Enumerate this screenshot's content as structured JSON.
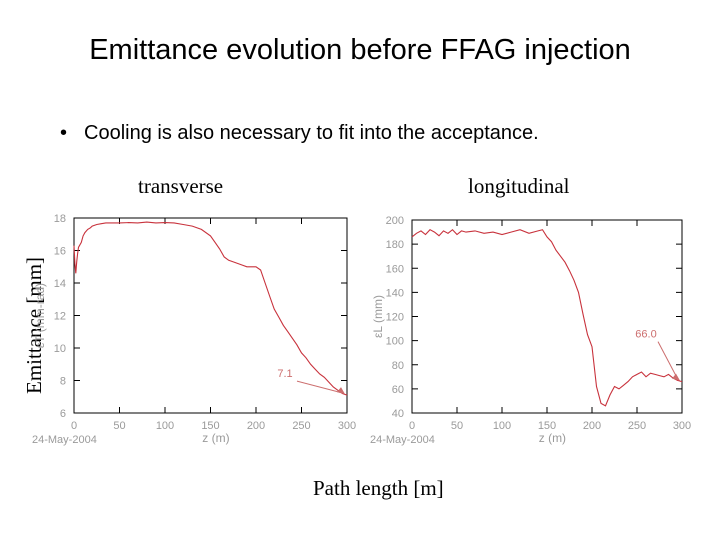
{
  "slide": {
    "title": "Emittance evolution before FFAG injection",
    "bullet": "Cooling is also necessary to fit into the acceptance.",
    "label_transverse": "transverse",
    "label_longitudinal": "longitudinal",
    "label_path": "Path length [m]",
    "label_emittance": "Emittance [mm]"
  },
  "colors": {
    "curve": "#c8323c",
    "axis": "#000000",
    "ticks": "#9a9a9a",
    "annotation": "#cc6e6e"
  },
  "chart_data": [
    {
      "type": "line",
      "panel": "transverse",
      "xlabel": "z (m)",
      "ylabel": "εT (mm-rad)",
      "date": "24-May-2004",
      "xlim": [
        0,
        300
      ],
      "ylim": [
        6,
        18
      ],
      "xticks": [
        0,
        50,
        100,
        150,
        200,
        250,
        300
      ],
      "yticks": [
        6,
        8,
        10,
        12,
        14,
        16,
        18
      ],
      "annotation": {
        "text": "7.1",
        "x": 300,
        "y": 7.1
      },
      "series": [
        {
          "x": [
            0,
            1,
            2,
            3,
            4,
            5,
            8,
            10,
            12,
            15,
            18,
            20,
            25,
            30,
            35,
            40,
            50,
            60,
            70,
            80,
            90,
            100,
            110,
            120,
            130,
            140,
            150,
            155,
            160,
            165,
            170,
            175,
            180,
            185,
            190,
            195,
            200,
            205,
            210,
            215,
            220,
            225,
            230,
            235,
            240,
            245,
            250,
            255,
            260,
            265,
            270,
            275,
            280,
            285,
            290,
            295,
            300
          ],
          "y": [
            16.3,
            15.2,
            14.6,
            15.3,
            15.8,
            16.2,
            16.5,
            16.9,
            17.1,
            17.3,
            17.4,
            17.5,
            17.6,
            17.65,
            17.7,
            17.7,
            17.7,
            17.72,
            17.7,
            17.75,
            17.7,
            17.72,
            17.7,
            17.6,
            17.5,
            17.3,
            16.9,
            16.5,
            16.1,
            15.6,
            15.4,
            15.3,
            15.2,
            15.1,
            15.0,
            15.0,
            15.0,
            14.8,
            14.0,
            13.2,
            12.4,
            11.9,
            11.4,
            11.0,
            10.6,
            10.2,
            9.7,
            9.4,
            9.0,
            8.7,
            8.4,
            8.2,
            7.9,
            7.6,
            7.4,
            7.2,
            7.1
          ]
        }
      ]
    },
    {
      "type": "line",
      "panel": "longitudinal",
      "xlabel": "z (m)",
      "ylabel": "εL (mm)",
      "date": "24-May-2004",
      "xlim": [
        0,
        300
      ],
      "ylim": [
        40,
        200
      ],
      "xticks": [
        0,
        50,
        100,
        150,
        200,
        250,
        300
      ],
      "yticks": [
        40,
        60,
        80,
        100,
        120,
        140,
        160,
        180,
        200
      ],
      "annotation": {
        "text": "66.0",
        "x": 300,
        "y": 66
      },
      "series": [
        {
          "x": [
            0,
            5,
            10,
            15,
            20,
            25,
            30,
            35,
            40,
            45,
            50,
            55,
            60,
            70,
            80,
            90,
            100,
            110,
            120,
            130,
            140,
            145,
            150,
            155,
            160,
            165,
            170,
            175,
            180,
            185,
            190,
            195,
            200,
            205,
            210,
            215,
            220,
            225,
            230,
            235,
            240,
            245,
            250,
            255,
            260,
            265,
            270,
            275,
            280,
            285,
            290,
            295,
            300
          ],
          "y": [
            186,
            189,
            191,
            188,
            192,
            190,
            187,
            191,
            189,
            192,
            188,
            191,
            190,
            191,
            189,
            190,
            188,
            190,
            192,
            189,
            191,
            192,
            186,
            182,
            175,
            170,
            165,
            158,
            150,
            140,
            122,
            105,
            95,
            62,
            48,
            46,
            55,
            62,
            60,
            63,
            66,
            70,
            72,
            74,
            70,
            73,
            72,
            71,
            70,
            72,
            69,
            67,
            66
          ]
        }
      ]
    }
  ]
}
